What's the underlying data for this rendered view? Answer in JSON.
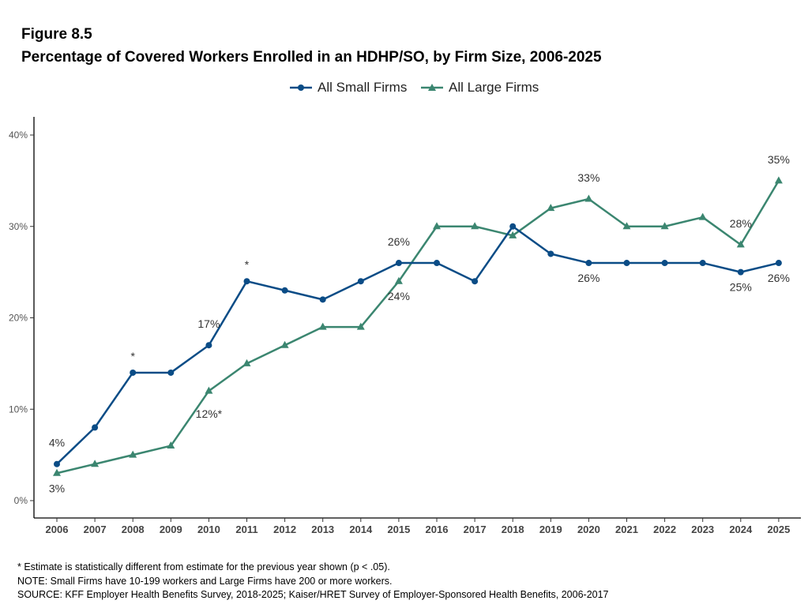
{
  "figure_label": "Figure 8.5",
  "title": "Percentage of Covered Workers Enrolled in an HDHP/SO, by Firm Size, 2006-2025",
  "legend": [
    {
      "name": "All Small Firms",
      "color": "#0a4c86",
      "marker": "circle"
    },
    {
      "name": "All Large Firms",
      "color": "#3b8670",
      "marker": "triangle"
    }
  ],
  "chart_data": {
    "type": "line",
    "title": "Percentage of Covered Workers Enrolled in an HDHP/SO, by Firm Size, 2006-2025",
    "xlabel": "",
    "ylabel": "",
    "x": [
      "2006",
      "2007",
      "2008",
      "2009",
      "2010",
      "2011",
      "2012",
      "2013",
      "2014",
      "2015",
      "2016",
      "2017",
      "2018",
      "2019",
      "2020",
      "2021",
      "2022",
      "2023",
      "2024",
      "2025"
    ],
    "ylim": [
      0,
      40
    ],
    "yticks": [
      0,
      10,
      20,
      30,
      40
    ],
    "ytick_labels": [
      "0%",
      "10%",
      "20%",
      "30%",
      "40%"
    ],
    "grid": false,
    "legend_position": "top",
    "series": [
      {
        "name": "All Small Firms",
        "color": "#0a4c86",
        "marker": "circle",
        "values": [
          4,
          8,
          14,
          14,
          17,
          24,
          23,
          22,
          24,
          26,
          26,
          24,
          30,
          27,
          26,
          26,
          26,
          26,
          25,
          26
        ],
        "labels": [
          {
            "x": "2006",
            "text": "4%",
            "pos": "above"
          },
          {
            "x": "2008",
            "text": "*",
            "pos": "above"
          },
          {
            "x": "2010",
            "text": "17%",
            "pos": "above"
          },
          {
            "x": "2011",
            "text": "*",
            "pos": "above"
          },
          {
            "x": "2015",
            "text": "26%",
            "pos": "above"
          },
          {
            "x": "2020",
            "text": "26%",
            "pos": "below"
          },
          {
            "x": "2024",
            "text": "25%",
            "pos": "below"
          },
          {
            "x": "2025",
            "text": "26%",
            "pos": "below"
          }
        ]
      },
      {
        "name": "All Large Firms",
        "color": "#3b8670",
        "marker": "triangle",
        "values": [
          3,
          4,
          5,
          6,
          12,
          15,
          17,
          19,
          19,
          24,
          30,
          30,
          29,
          32,
          33,
          30,
          30,
          31,
          28,
          35
        ],
        "labels": [
          {
            "x": "2006",
            "text": "3%",
            "pos": "below"
          },
          {
            "x": "2010",
            "text": "12%*",
            "pos": "below-right"
          },
          {
            "x": "2015",
            "text": "24%",
            "pos": "below"
          },
          {
            "x": "2020",
            "text": "33%",
            "pos": "above"
          },
          {
            "x": "2024",
            "text": "28%",
            "pos": "above"
          },
          {
            "x": "2025",
            "text": "35%",
            "pos": "above"
          }
        ]
      }
    ]
  },
  "notes": {
    "asterisk": "* Estimate is statistically different from estimate for the previous year shown (p < .05).",
    "note": "NOTE: Small Firms have 10-199 workers and Large Firms have 200 or more workers.",
    "source": "SOURCE: KFF Employer Health Benefits Survey, 2018-2025; Kaiser/HRET Survey of Employer-Sponsored Health Benefits, 2006-2017"
  }
}
